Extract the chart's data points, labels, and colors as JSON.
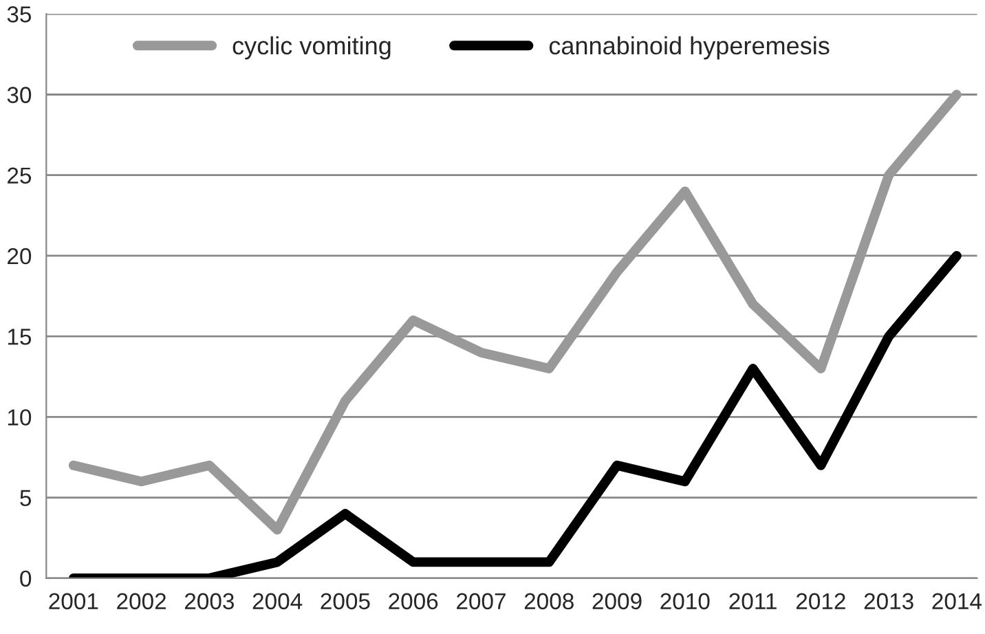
{
  "chart_data": {
    "type": "line",
    "categories": [
      "2001",
      "2002",
      "2003",
      "2004",
      "2005",
      "2006",
      "2007",
      "2008",
      "2009",
      "2010",
      "2011",
      "2012",
      "2013",
      "2014"
    ],
    "series": [
      {
        "name": "cyclic vomiting",
        "color": "#999999",
        "values": [
          7,
          6,
          7,
          3,
          11,
          16,
          14,
          13,
          19,
          24,
          17,
          13,
          25,
          30
        ]
      },
      {
        "name": "cannabinoid hyperemesis",
        "color": "#000000",
        "values": [
          0,
          0,
          0,
          1,
          4,
          1,
          1,
          1,
          7,
          6,
          13,
          7,
          15,
          20
        ]
      }
    ],
    "ylim": [
      0,
      35
    ],
    "yticks": [
      0,
      5,
      10,
      15,
      20,
      25,
      30,
      35
    ],
    "grid": "y",
    "legend": "top",
    "marker": "none",
    "line_style": "solid"
  }
}
